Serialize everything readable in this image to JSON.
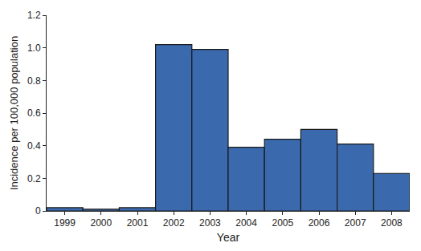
{
  "chart_data": {
    "type": "bar",
    "x_label": "Year",
    "y_label": "Incidence per 100,000 population",
    "categories": [
      "1999",
      "2000",
      "2001",
      "2002",
      "2003",
      "2004",
      "2005",
      "2006",
      "2007",
      "2008"
    ],
    "values": [
      0.02,
      0.01,
      0.02,
      1.02,
      0.99,
      0.39,
      0.44,
      0.5,
      0.41,
      0.23
    ],
    "color": "#3a6aad",
    "ylim": [
      0,
      1.2
    ],
    "yticks": [
      0,
      0.2,
      0.4,
      0.6,
      0.8,
      {
        "value": 1.0,
        "label": "1.0"
      },
      1.2
    ],
    "grid": false
  }
}
